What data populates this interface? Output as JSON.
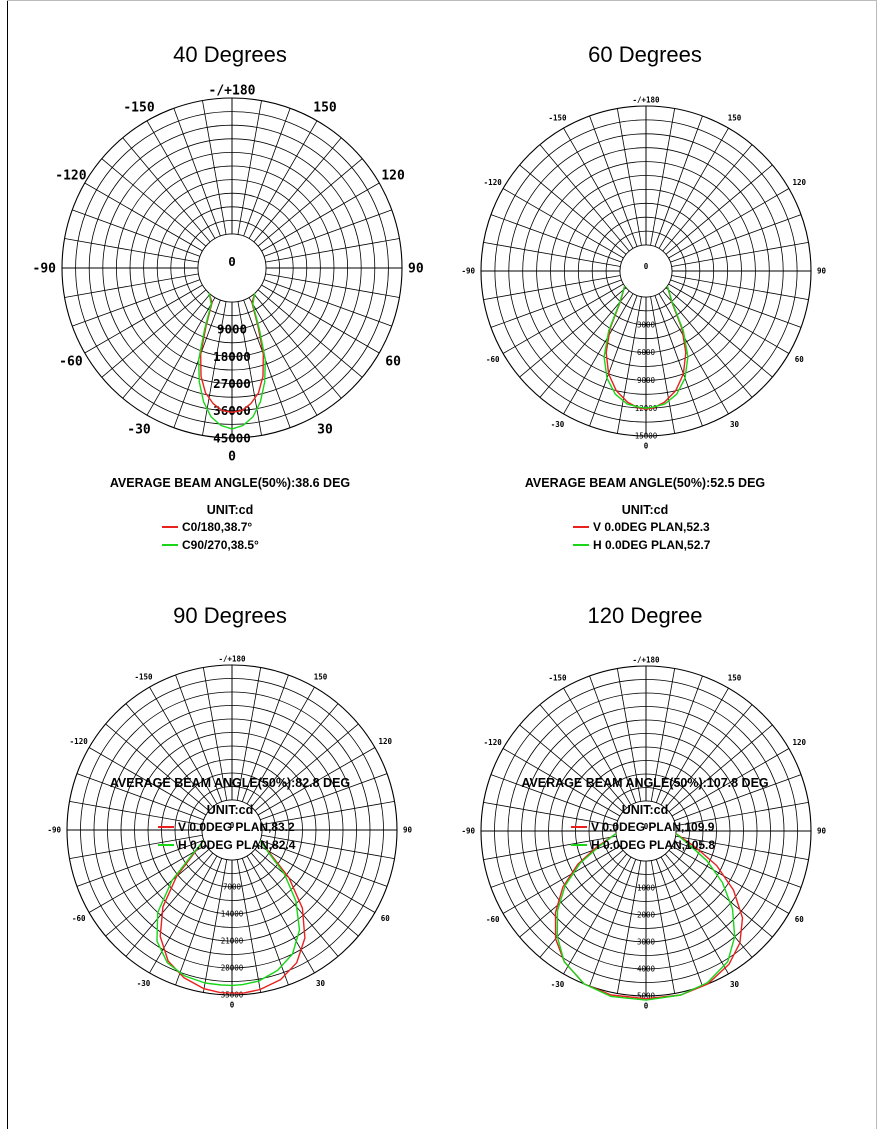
{
  "colors": {
    "series_a": "#e8211f",
    "series_b": "#19d619"
  },
  "chart_data": [
    {
      "type": "polar",
      "title": "40 Degrees",
      "beam_angle_text": "AVERAGE BEAM ANGLE(50%):38.6 DEG",
      "unit_text": "UNIT:cd",
      "angle_labels": [
        "-/+180",
        "150",
        "120",
        "90",
        "60",
        "30",
        "0",
        "-30",
        "-60",
        "-90",
        "-120",
        "-150"
      ],
      "center_label": "0",
      "radial_ticks": [
        "9000",
        "18000",
        "27000",
        "36000",
        "45000"
      ],
      "rmax": 45000,
      "grid": true,
      "series": [
        {
          "name": "C0/180,38.7°",
          "color": "#e8211f",
          "points": [
            [
              -42,
              0
            ],
            [
              -30,
              2000
            ],
            [
              -24,
              10000
            ],
            [
              -20,
              19000
            ],
            [
              -16,
              26000
            ],
            [
              -12,
              31000
            ],
            [
              -8,
              34000
            ],
            [
              -4,
              36000
            ],
            [
              0,
              36500
            ],
            [
              4,
              36000
            ],
            [
              8,
              34000
            ],
            [
              12,
              31000
            ],
            [
              16,
              26000
            ],
            [
              20,
              19000
            ],
            [
              24,
              10000
            ],
            [
              30,
              2000
            ],
            [
              42,
              0
            ]
          ]
        },
        {
          "name": "C90/270,38.5°",
          "color": "#19d619",
          "points": [
            [
              -42,
              0
            ],
            [
              -30,
              2500
            ],
            [
              -24,
              11000
            ],
            [
              -20,
              21000
            ],
            [
              -16,
              28000
            ],
            [
              -12,
              34000
            ],
            [
              -8,
              38500
            ],
            [
              -4,
              41000
            ],
            [
              0,
              42000
            ],
            [
              4,
              41000
            ],
            [
              8,
              38500
            ],
            [
              12,
              34000
            ],
            [
              16,
              28000
            ],
            [
              20,
              21000
            ],
            [
              24,
              11000
            ],
            [
              30,
              2500
            ],
            [
              42,
              0
            ]
          ]
        }
      ]
    },
    {
      "type": "polar",
      "title": "60 Degrees",
      "beam_angle_text": "AVERAGE BEAM ANGLE(50%):52.5 DEG",
      "unit_text": "UNIT:cd",
      "angle_labels": [
        "-/+180",
        "150",
        "120",
        "90",
        "60",
        "30",
        "0",
        "-30",
        "-60",
        "-90",
        "-120",
        "-150"
      ],
      "center_label": "0",
      "radial_ticks": [
        "3000",
        "6000",
        "9000",
        "12000",
        "15000"
      ],
      "rmax": 15000,
      "grid": true,
      "series": [
        {
          "name": "V 0.0DEG PLAN,52.3",
          "color": "#e8211f",
          "points": [
            [
              -55,
              0
            ],
            [
              -40,
              1500
            ],
            [
              -32,
              4500
            ],
            [
              -26,
              7000
            ],
            [
              -20,
              9000
            ],
            [
              -14,
              10500
            ],
            [
              -8,
              11500
            ],
            [
              -3,
              12000
            ],
            [
              0,
              12100
            ],
            [
              3,
              12000
            ],
            [
              8,
              11500
            ],
            [
              14,
              10500
            ],
            [
              20,
              9000
            ],
            [
              26,
              7000
            ],
            [
              32,
              4500
            ],
            [
              40,
              1500
            ],
            [
              55,
              0
            ]
          ]
        },
        {
          "name": "H 0.0DEG PLAN,52.7",
          "color": "#19d619",
          "points": [
            [
              -55,
              0
            ],
            [
              -40,
              1600
            ],
            [
              -32,
              4800
            ],
            [
              -26,
              7500
            ],
            [
              -20,
              9500
            ],
            [
              -14,
              10900
            ],
            [
              -8,
              11700
            ],
            [
              -3,
              11900
            ],
            [
              0,
              12000
            ],
            [
              3,
              11900
            ],
            [
              8,
              11700
            ],
            [
              14,
              10900
            ],
            [
              20,
              9500
            ],
            [
              26,
              7500
            ],
            [
              32,
              4800
            ],
            [
              40,
              1600
            ],
            [
              55,
              0
            ]
          ]
        }
      ]
    },
    {
      "type": "polar",
      "title": "90 Degrees",
      "beam_angle_text": "AVERAGE BEAM ANGLE(50%):82.8 DEG",
      "unit_text": "UNIT:cd",
      "angle_labels": [
        "-/+180",
        "150",
        "120",
        "90",
        "60",
        "30",
        "0",
        "-30",
        "-60",
        "-90",
        "-120",
        "-150"
      ],
      "center_label": "0",
      "radial_ticks": [
        "7000",
        "14000",
        "21000",
        "28000",
        "35000"
      ],
      "rmax": 35000,
      "grid": true,
      "series": [
        {
          "name": "V 0.0DEG PLAN,83.2",
          "color": "#e8211f",
          "points": [
            [
              -70,
              0
            ],
            [
              -58,
              4000
            ],
            [
              -50,
              11000
            ],
            [
              -42,
              19000
            ],
            [
              -34,
              25500
            ],
            [
              -26,
              30000
            ],
            [
              -18,
              32500
            ],
            [
              -10,
              34000
            ],
            [
              -4,
              34500
            ],
            [
              0,
              34500
            ],
            [
              4,
              34600
            ],
            [
              10,
              34200
            ],
            [
              18,
              33000
            ],
            [
              26,
              30500
            ],
            [
              34,
              26000
            ],
            [
              42,
              19500
            ],
            [
              50,
              11500
            ],
            [
              58,
              4000
            ],
            [
              70,
              0
            ]
          ]
        },
        {
          "name": "H 0.0DEG PLAN,82.4",
          "color": "#19d619",
          "points": [
            [
              -70,
              0
            ],
            [
              -58,
              4500
            ],
            [
              -50,
              12500
            ],
            [
              -42,
              21000
            ],
            [
              -34,
              27000
            ],
            [
              -26,
              30500
            ],
            [
              -18,
              32000
            ],
            [
              -10,
              32500
            ],
            [
              -4,
              32500
            ],
            [
              0,
              32500
            ],
            [
              4,
              32400
            ],
            [
              10,
              32000
            ],
            [
              18,
              30500
            ],
            [
              26,
              28000
            ],
            [
              34,
              23500
            ],
            [
              42,
              17000
            ],
            [
              50,
              10000
            ],
            [
              58,
              3500
            ],
            [
              70,
              0
            ]
          ]
        }
      ]
    },
    {
      "type": "polar",
      "title": "120 Degree",
      "beam_angle_text": "AVERAGE BEAM ANGLE(50%):107.8 DEG",
      "unit_text": "UNIT:cd",
      "angle_labels": [
        "-/+180",
        "150",
        "120",
        "90",
        "60",
        "30",
        "0",
        "-30",
        "-60",
        "-90",
        "-120",
        "-150"
      ],
      "center_label": "0",
      "radial_ticks": [
        "1000",
        "2000",
        "3000",
        "4000",
        "5000"
      ],
      "rmax": 5000,
      "grid": true,
      "series": [
        {
          "name": "V 0.0DEG PLAN,109.9",
          "color": "#e8211f",
          "points": [
            [
              -85,
              0
            ],
            [
              -72,
              800
            ],
            [
              -64,
              1700
            ],
            [
              -56,
              2600
            ],
            [
              -48,
              3400
            ],
            [
              -40,
              4100
            ],
            [
              -32,
              4600
            ],
            [
              -22,
              5000
            ],
            [
              -12,
              5100
            ],
            [
              0,
              5100
            ],
            [
              12,
              5100
            ],
            [
              22,
              5000
            ],
            [
              32,
              4700
            ],
            [
              40,
              4300
            ],
            [
              48,
              3700
            ],
            [
              56,
              2800
            ],
            [
              64,
              1800
            ],
            [
              72,
              800
            ],
            [
              85,
              0
            ]
          ]
        },
        {
          "name": "H 0.0DEG PLAN,105.8",
          "color": "#19d619",
          "points": [
            [
              -85,
              0
            ],
            [
              -72,
              700
            ],
            [
              -64,
              1600
            ],
            [
              -56,
              2500
            ],
            [
              -48,
              3300
            ],
            [
              -40,
              4000
            ],
            [
              -32,
              4600
            ],
            [
              -22,
              5000
            ],
            [
              -12,
              5150
            ],
            [
              0,
              5150
            ],
            [
              12,
              5100
            ],
            [
              22,
              4950
            ],
            [
              32,
              4600
            ],
            [
              40,
              4000
            ],
            [
              48,
              3200
            ],
            [
              56,
              2300
            ],
            [
              64,
              1400
            ],
            [
              72,
              600
            ],
            [
              85,
              0
            ]
          ]
        }
      ]
    }
  ]
}
